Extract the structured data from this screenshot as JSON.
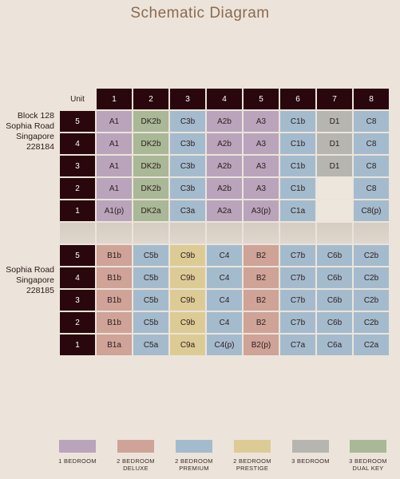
{
  "title": "Schematic Diagram",
  "block_top": [
    "Block 128",
    "Sophia Road",
    "Singapore",
    "228184"
  ],
  "block_bottom": [
    "Sophia Road",
    "Singapore",
    "228185"
  ],
  "unit_header": "Unit",
  "columns": [
    "1",
    "2",
    "3",
    "4",
    "5",
    "6",
    "7",
    "8"
  ],
  "colors": {
    "1br": "#b9a4bc",
    "2br_deluxe": "#cfa397",
    "2br_premium": "#a4bbcd",
    "2br_prestige": "#ddcb95",
    "3br": "#b7b5b0",
    "3br_dualkey": "#a9b896"
  },
  "rows": [
    {
      "level": "5",
      "cells": [
        [
          "A1",
          "1br"
        ],
        [
          "DK2b",
          "3br_dualkey"
        ],
        [
          "C3b",
          "2br_premium"
        ],
        [
          "A2b",
          "1br"
        ],
        [
          "A3",
          "1br"
        ],
        [
          "C1b",
          "2br_premium"
        ],
        [
          "D1",
          "3br"
        ],
        [
          "C8",
          "2br_premium"
        ]
      ]
    },
    {
      "level": "4",
      "cells": [
        [
          "A1",
          "1br"
        ],
        [
          "DK2b",
          "3br_dualkey"
        ],
        [
          "C3b",
          "2br_premium"
        ],
        [
          "A2b",
          "1br"
        ],
        [
          "A3",
          "1br"
        ],
        [
          "C1b",
          "2br_premium"
        ],
        [
          "D1",
          "3br"
        ],
        [
          "C8",
          "2br_premium"
        ]
      ]
    },
    {
      "level": "3",
      "cells": [
        [
          "A1",
          "1br"
        ],
        [
          "DK2b",
          "3br_dualkey"
        ],
        [
          "C3b",
          "2br_premium"
        ],
        [
          "A2b",
          "1br"
        ],
        [
          "A3",
          "1br"
        ],
        [
          "C1b",
          "2br_premium"
        ],
        [
          "D1",
          "3br"
        ],
        [
          "C8",
          "2br_premium"
        ]
      ]
    },
    {
      "level": "2",
      "cells": [
        [
          "A1",
          "1br"
        ],
        [
          "DK2b",
          "3br_dualkey"
        ],
        [
          "C3b",
          "2br_premium"
        ],
        [
          "A2b",
          "1br"
        ],
        [
          "A3",
          "1br"
        ],
        [
          "C1b",
          "2br_premium"
        ],
        [
          "",
          "empty"
        ],
        [
          "C8",
          "2br_premium"
        ]
      ]
    },
    {
      "level": "1",
      "cells": [
        [
          "A1(p)",
          "1br"
        ],
        [
          "DK2a",
          "3br_dualkey"
        ],
        [
          "C3a",
          "2br_premium"
        ],
        [
          "A2a",
          "1br"
        ],
        [
          "A3(p)",
          "1br"
        ],
        [
          "C1a",
          "2br_premium"
        ],
        [
          "",
          "empty"
        ],
        [
          "C8(p)",
          "2br_premium"
        ]
      ]
    },
    {
      "level": "",
      "transition": true,
      "cells": []
    },
    {
      "level": "5",
      "cells": [
        [
          "B1b",
          "2br_deluxe"
        ],
        [
          "C5b",
          "2br_premium"
        ],
        [
          "C9b",
          "2br_prestige"
        ],
        [
          "C4",
          "2br_premium"
        ],
        [
          "B2",
          "2br_deluxe"
        ],
        [
          "C7b",
          "2br_premium"
        ],
        [
          "C6b",
          "2br_premium"
        ],
        [
          "C2b",
          "2br_premium"
        ]
      ]
    },
    {
      "level": "4",
      "cells": [
        [
          "B1b",
          "2br_deluxe"
        ],
        [
          "C5b",
          "2br_premium"
        ],
        [
          "C9b",
          "2br_prestige"
        ],
        [
          "C4",
          "2br_premium"
        ],
        [
          "B2",
          "2br_deluxe"
        ],
        [
          "C7b",
          "2br_premium"
        ],
        [
          "C6b",
          "2br_premium"
        ],
        [
          "C2b",
          "2br_premium"
        ]
      ]
    },
    {
      "level": "3",
      "cells": [
        [
          "B1b",
          "2br_deluxe"
        ],
        [
          "C5b",
          "2br_premium"
        ],
        [
          "C9b",
          "2br_prestige"
        ],
        [
          "C4",
          "2br_premium"
        ],
        [
          "B2",
          "2br_deluxe"
        ],
        [
          "C7b",
          "2br_premium"
        ],
        [
          "C6b",
          "2br_premium"
        ],
        [
          "C2b",
          "2br_premium"
        ]
      ]
    },
    {
      "level": "2",
      "cells": [
        [
          "B1b",
          "2br_deluxe"
        ],
        [
          "C5b",
          "2br_premium"
        ],
        [
          "C9b",
          "2br_prestige"
        ],
        [
          "C4",
          "2br_premium"
        ],
        [
          "B2",
          "2br_deluxe"
        ],
        [
          "C7b",
          "2br_premium"
        ],
        [
          "C6b",
          "2br_premium"
        ],
        [
          "C2b",
          "2br_premium"
        ]
      ]
    },
    {
      "level": "1",
      "cells": [
        [
          "B1a",
          "2br_deluxe"
        ],
        [
          "C5a",
          "2br_premium"
        ],
        [
          "C9a",
          "2br_prestige"
        ],
        [
          "C4(p)",
          "2br_premium"
        ],
        [
          "B2(p)",
          "2br_deluxe"
        ],
        [
          "C7a",
          "2br_premium"
        ],
        [
          "C6a",
          "2br_premium"
        ],
        [
          "C2a",
          "2br_premium"
        ]
      ]
    }
  ],
  "legend": [
    {
      "key": "1br",
      "line1": "1 BEDROOM",
      "line2": ""
    },
    {
      "key": "2br_deluxe",
      "line1": "2 BEDROOM",
      "line2": "DELUXE"
    },
    {
      "key": "2br_premium",
      "line1": "2 BEDROOM",
      "line2": "PREMIUM"
    },
    {
      "key": "2br_prestige",
      "line1": "2 BEDROOM",
      "line2": "PRESTIGE"
    },
    {
      "key": "3br",
      "line1": "3 BEDROOM",
      "line2": ""
    },
    {
      "key": "3br_dualkey",
      "line1": "3 BEDROOM",
      "line2": "DUAL KEY"
    }
  ]
}
